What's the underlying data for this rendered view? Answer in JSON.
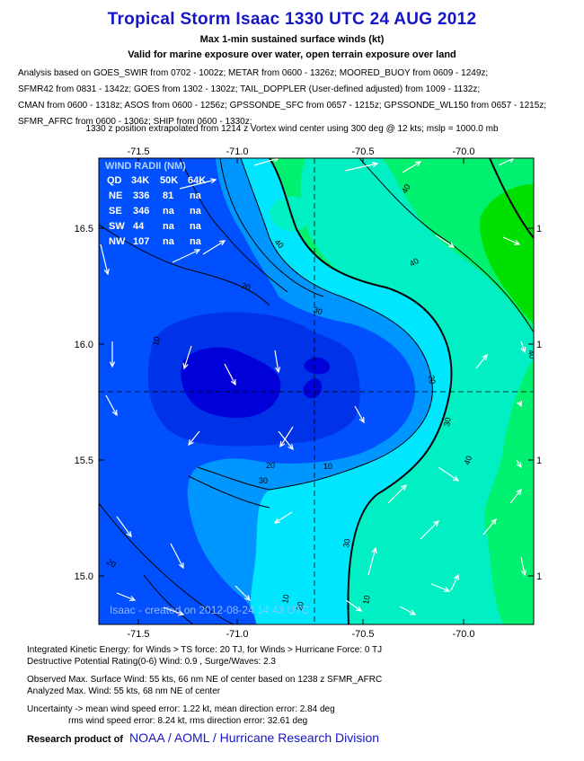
{
  "header": {
    "title": "Tropical Storm Isaac 1330 UTC 24 AUG 2012",
    "subtitle1": "Max 1-min sustained surface winds (kt)",
    "subtitle2": "Valid for marine exposure over water, open terrain exposure over land",
    "analysis_lines": [
      "Analysis based on GOES_SWIR from 0702 - 1002z; METAR from 0600 - 1326z; MOORED_BUOY from 0609 - 1249z;",
      "SFMR42 from 0831 - 1342z; GOES from 1302 - 1302z; TAIL_DOPPLER (User-defined adjusted) from 1009 - 1132z;",
      "CMAN from 0600 - 1318z; ASOS from 0600 - 1256z; GPSSONDE_SFC from 0657 - 1215z; GPSSONDE_WL150 from 0657 - 1215z;",
      "SFMR_AFRC from 0600 - 1306z; SHIP from 0600 - 1330z;"
    ],
    "position_note": "1330 z position extrapolated from 1214 z Vortex wind center using 300 deg @ 12 kts; mslp = 1000.0 mb"
  },
  "map": {
    "x_ticks": [
      "-71.5",
      "-71.0",
      "-70.5",
      "-70.0"
    ],
    "y_ticks": [
      "16.5",
      "16.0",
      "15.5",
      "15.0"
    ],
    "right_tick_labels": [
      "1",
      "1",
      "1",
      "1"
    ],
    "contour_labels": [
      "10",
      "10",
      "20",
      "20",
      "20",
      "20",
      "30",
      "30",
      "30",
      "30",
      "40",
      "40",
      "40",
      "40",
      "40",
      "20",
      "10",
      "10"
    ],
    "watermark": "Isaac - created on 2012-08-24 14:43 UTC",
    "center": {
      "lon": -70.66,
      "lat": 15.8
    },
    "colors": {
      "deep_blue": "#0000d8",
      "blue": "#0050ff",
      "mid_blue": "#0096ff",
      "cyan": "#00e6ff",
      "aqua": "#00f0c4",
      "spring_green": "#00f070",
      "green": "#00e000",
      "contour": "#000000",
      "arrow": "#ffffff"
    },
    "wind_radii": {
      "title": "WIND RADII (NM)",
      "header": [
        "QD",
        "34K",
        "50K",
        "64K"
      ],
      "rows": [
        [
          "NE",
          "336",
          "81",
          "na"
        ],
        [
          "SE",
          "346",
          "na",
          "na"
        ],
        [
          "SW",
          "44",
          "na",
          "na"
        ],
        [
          "NW",
          "107",
          "na",
          "na"
        ]
      ]
    }
  },
  "footer": {
    "ike": "Integrated Kinetic Energy: for Winds > TS force: 20 TJ, for Winds > Hurricane Force: 0 TJ",
    "dpr": "Destructive Potential Rating(0-6)  Wind: 0.9 , Surge/Waves: 2.3",
    "observed": "Observed Max. Surface Wind: 55 kts, 66 nm NE of center based on 1238 z SFMR_AFRC",
    "analyzed": "Analyzed Max. Wind: 55 kts, 68 nm  NE of center",
    "uncertainty1": "Uncertainty -> mean wind speed error: 1.22 kt, mean direction error: 2.84 deg",
    "uncertainty2": "rms wind speed error: 8.24 kt, rms direction error: 32.61 deg",
    "research_label": "Research product of",
    "research_org": "NOAA / AOML / Hurricane Research Division"
  }
}
